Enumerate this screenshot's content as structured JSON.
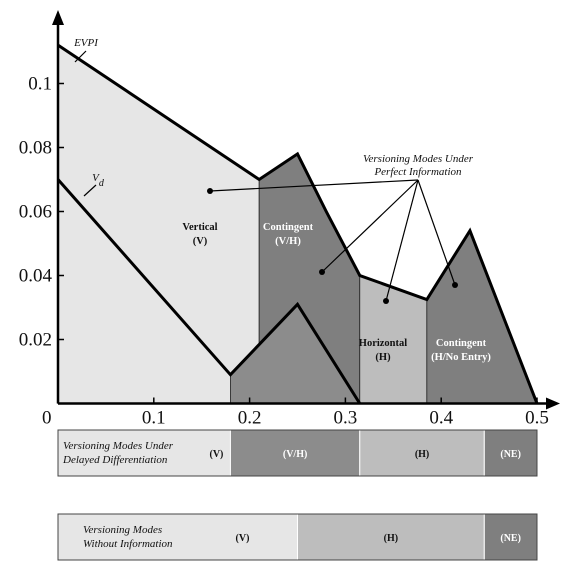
{
  "chart_data": {
    "type": "area",
    "title": "",
    "xlabel": "",
    "ylabel": "",
    "xlim": [
      0,
      0.5
    ],
    "ylim": [
      0,
      0.11
    ],
    "x_ticks": [
      "0",
      "0.1",
      "0.2",
      "0.3",
      "0.4",
      "0.5"
    ],
    "y_ticks": [
      "0.02",
      "0.04",
      "0.06",
      "0.08",
      "0.1"
    ],
    "series": [
      {
        "name": "EVPI",
        "x": [
          0,
          0.21,
          0.25,
          0.28,
          0.315,
          0.385,
          0.43,
          0.5
        ],
        "y": [
          0.112,
          0.07,
          0.078,
          0.06,
          0.04,
          0.0325,
          0.054,
          0
        ]
      },
      {
        "name": "V_d",
        "x": [
          0,
          0.18,
          0.25,
          0.315
        ],
        "y": [
          0.07,
          0.009,
          0.031,
          0
        ]
      }
    ],
    "regions": [
      {
        "label": "Vertical",
        "code": "(V)",
        "x_range": [
          0,
          0.21
        ],
        "color": "#e6e6e6"
      },
      {
        "label": "Contingent",
        "code": "(V/H)",
        "x_range": [
          0.21,
          0.315
        ],
        "color": "#7f7f7f"
      },
      {
        "label": "Horizontal",
        "code": "(H)",
        "x_range": [
          0.315,
          0.385
        ],
        "color": "#bdbdbd"
      },
      {
        "label": "Contingent",
        "code": "(H/No   Entry)",
        "x_range": [
          0.385,
          0.5
        ],
        "color": "#7f7f7f"
      }
    ],
    "annotation": {
      "line1": "Versioning Modes Under",
      "line2": "Perfect Information"
    },
    "labels": {
      "evpi": "EVPI",
      "vd_main": "V",
      "vd_sub": "d"
    },
    "bands": [
      {
        "title_line1": "Versioning Modes Under",
        "title_line2": "Delayed Differentiation",
        "segments": [
          {
            "label": "(V)",
            "x_range": [
              0,
              0.18
            ],
            "color": "#e6e6e6"
          },
          {
            "label": "(V/H)",
            "x_range": [
              0.18,
              0.315
            ],
            "color": "#8c8c8c"
          },
          {
            "label": "(H)",
            "x_range": [
              0.315,
              0.445
            ],
            "color": "#bdbdbd"
          },
          {
            "label": "(NE)",
            "x_range": [
              0.445,
              0.5
            ],
            "color": "#7f7f7f"
          }
        ]
      },
      {
        "title_line1": "Versioning Modes",
        "title_line2": "Without Information",
        "segments": [
          {
            "label": "(V)",
            "x_range": [
              0,
              0.25
            ],
            "color": "#e6e6e6"
          },
          {
            "label": "(H)",
            "x_range": [
              0.25,
              0.445
            ],
            "color": "#bdbdbd"
          },
          {
            "label": "(NE)",
            "x_range": [
              0.445,
              0.5
            ],
            "color": "#7f7f7f"
          }
        ]
      }
    ]
  }
}
